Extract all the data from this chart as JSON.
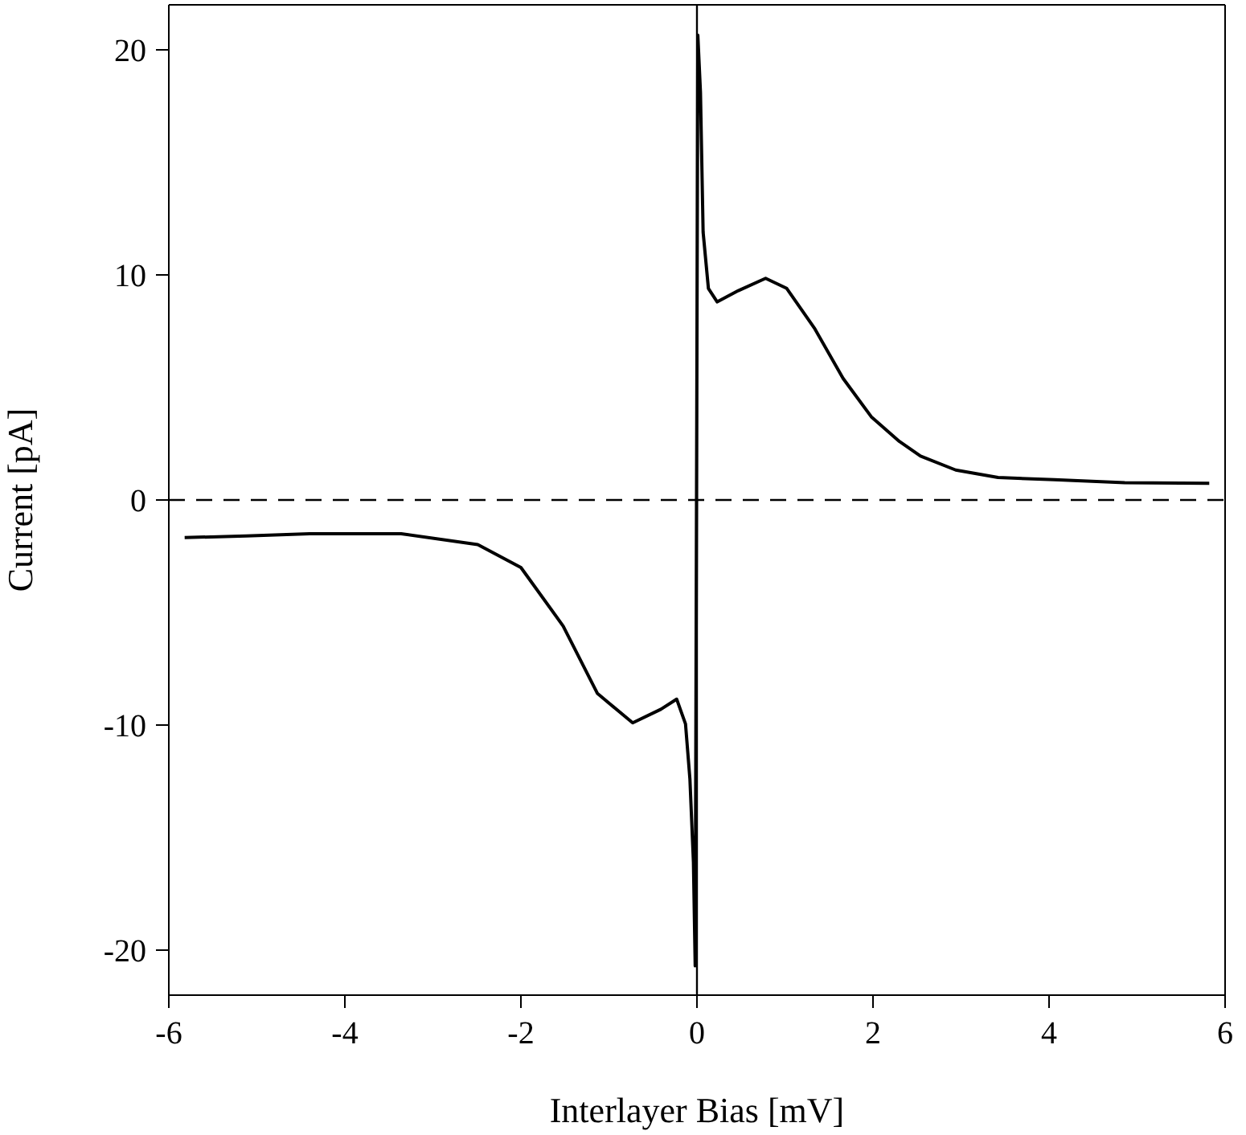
{
  "chart_data": {
    "type": "line",
    "xlabel": "Interlayer Bias [mV]",
    "ylabel": "Current [pA]",
    "xlim": [
      -6,
      6
    ],
    "ylim": [
      -22,
      22
    ],
    "xticks": [
      -6,
      -4,
      -2,
      0,
      2,
      4,
      6
    ],
    "yticks": [
      -20,
      -10,
      0,
      10,
      20
    ],
    "marker": "none",
    "line_style": "solid",
    "series": [
      {
        "color": "#000000",
        "x": [
          -5.82,
          -5.12,
          -4.4,
          -3.36,
          -2.49,
          -2.0,
          -1.52,
          -1.13,
          -0.73,
          -0.41,
          -0.23,
          -0.13,
          -0.08,
          -0.04,
          -0.02,
          0.01,
          0.04,
          0.07,
          0.13,
          0.23,
          0.47,
          0.78,
          1.02,
          1.34,
          1.66,
          1.98,
          2.3,
          2.54,
          2.94,
          3.42,
          4.06,
          4.86,
          5.82
        ],
        "values": [
          -1.67,
          -1.6,
          -1.5,
          -1.5,
          -1.98,
          -3.0,
          -5.6,
          -8.6,
          -9.9,
          -9.3,
          -8.85,
          -9.95,
          -12.4,
          -16.1,
          -20.7,
          20.65,
          18.1,
          11.9,
          9.4,
          8.8,
          9.3,
          9.85,
          9.4,
          7.6,
          5.4,
          3.7,
          2.6,
          1.95,
          1.33,
          1.0,
          0.9,
          0.77,
          0.74
        ]
      }
    ],
    "ref_lines": [
      {
        "axis": "y",
        "value": 0,
        "color": "#000000",
        "line_style": "dashed"
      },
      {
        "axis": "x",
        "value": 0,
        "color": "#000000",
        "line_style": "solid"
      }
    ]
  }
}
